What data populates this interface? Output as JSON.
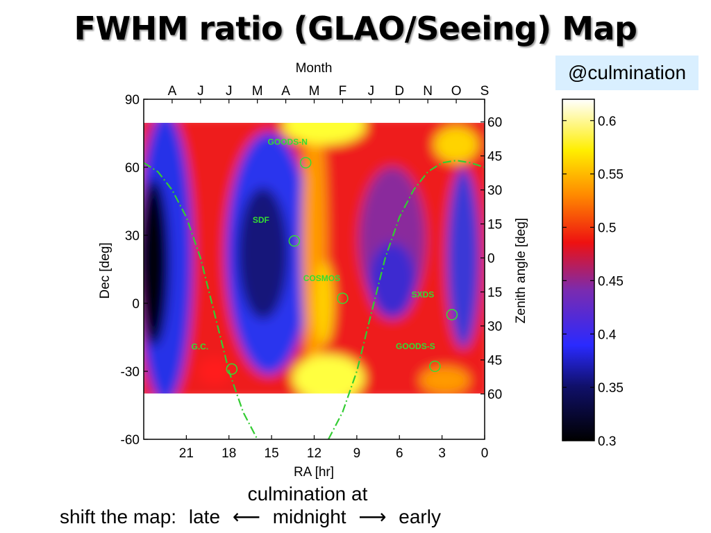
{
  "title": "FWHM ratio (GLAO/Seeing) Map",
  "badge": "@culmination",
  "caption": {
    "line1": "culmination at",
    "line2_prefix": "shift the map:",
    "late": "late",
    "arrow_left": "⟵",
    "midnight": "midnight",
    "arrow_right": "⟶",
    "early": "early"
  },
  "chart_data": {
    "type": "heatmap",
    "title": "",
    "xlabel": "RA [hr]",
    "ylabel": "Dec [deg]",
    "top_axis_label": "Month",
    "right_axis_label": "Zenith angle [deg]",
    "xlim": [
      24,
      0
    ],
    "ylim": [
      -60,
      90
    ],
    "x_ticks": [
      21,
      18,
      15,
      12,
      9,
      6,
      3,
      0
    ],
    "y_ticks": [
      -60,
      -30,
      0,
      30,
      60,
      90
    ],
    "month_ticks": [
      {
        "label": "A",
        "ra": 22
      },
      {
        "label": "J",
        "ra": 20
      },
      {
        "label": "J",
        "ra": 18
      },
      {
        "label": "M",
        "ra": 16
      },
      {
        "label": "A",
        "ra": 14
      },
      {
        "label": "M",
        "ra": 12
      },
      {
        "label": "F",
        "ra": 10
      },
      {
        "label": "J",
        "ra": 8
      },
      {
        "label": "D",
        "ra": 6
      },
      {
        "label": "N",
        "ra": 4
      },
      {
        "label": "O",
        "ra": 2
      },
      {
        "label": "S",
        "ra": 0
      }
    ],
    "zenith_ticks": [
      {
        "label": "60",
        "dec": 80
      },
      {
        "label": "45",
        "dec": 65
      },
      {
        "label": "30",
        "dec": 50
      },
      {
        "label": "15",
        "dec": 35
      },
      {
        "label": "0",
        "dec": 20
      },
      {
        "label": "15",
        "dec": 5
      },
      {
        "label": "30",
        "dec": -10
      },
      {
        "label": "45",
        "dec": -25
      },
      {
        "label": "60",
        "dec": -40
      }
    ],
    "data_dec_range": [
      -40,
      80
    ],
    "colorbar": {
      "min": 0.3,
      "max": 0.62,
      "ticks": [
        0.3,
        0.35,
        0.4,
        0.45,
        0.5,
        0.55,
        0.6
      ],
      "tick_labels": [
        "0.3",
        "0.35",
        "0.4",
        "0.45",
        "0.5",
        "0.55",
        "0.6"
      ]
    },
    "fields": [
      {
        "name": "GOODS-N",
        "ra": 12.6,
        "dec": 62
      },
      {
        "name": "SDF",
        "ra": 13.4,
        "dec": 27.5
      },
      {
        "name": "COSMOS",
        "ra": 10.0,
        "dec": 2.2
      },
      {
        "name": "SXDS",
        "ra": 2.3,
        "dec": -5
      },
      {
        "name": "GOODS-S",
        "ra": 3.5,
        "dec": -27.8
      },
      {
        "name": "G.C.",
        "ra": 17.8,
        "dec": -29
      }
    ],
    "galactic_plane": [
      [
        24,
        62
      ],
      [
        23,
        58
      ],
      [
        22,
        50
      ],
      [
        21,
        38
      ],
      [
        20,
        20
      ],
      [
        19,
        -5
      ],
      [
        18,
        -30
      ],
      [
        17,
        -48
      ],
      [
        16,
        -60
      ]
    ],
    "galactic_plane_right": [
      [
        11,
        -60
      ],
      [
        10,
        -48
      ],
      [
        9,
        -30
      ],
      [
        8,
        -5
      ],
      [
        7,
        20
      ],
      [
        6,
        38
      ],
      [
        5,
        50
      ],
      [
        4,
        58
      ],
      [
        3,
        62
      ],
      [
        2,
        63
      ],
      [
        1,
        62
      ],
      [
        0,
        60
      ]
    ]
  }
}
